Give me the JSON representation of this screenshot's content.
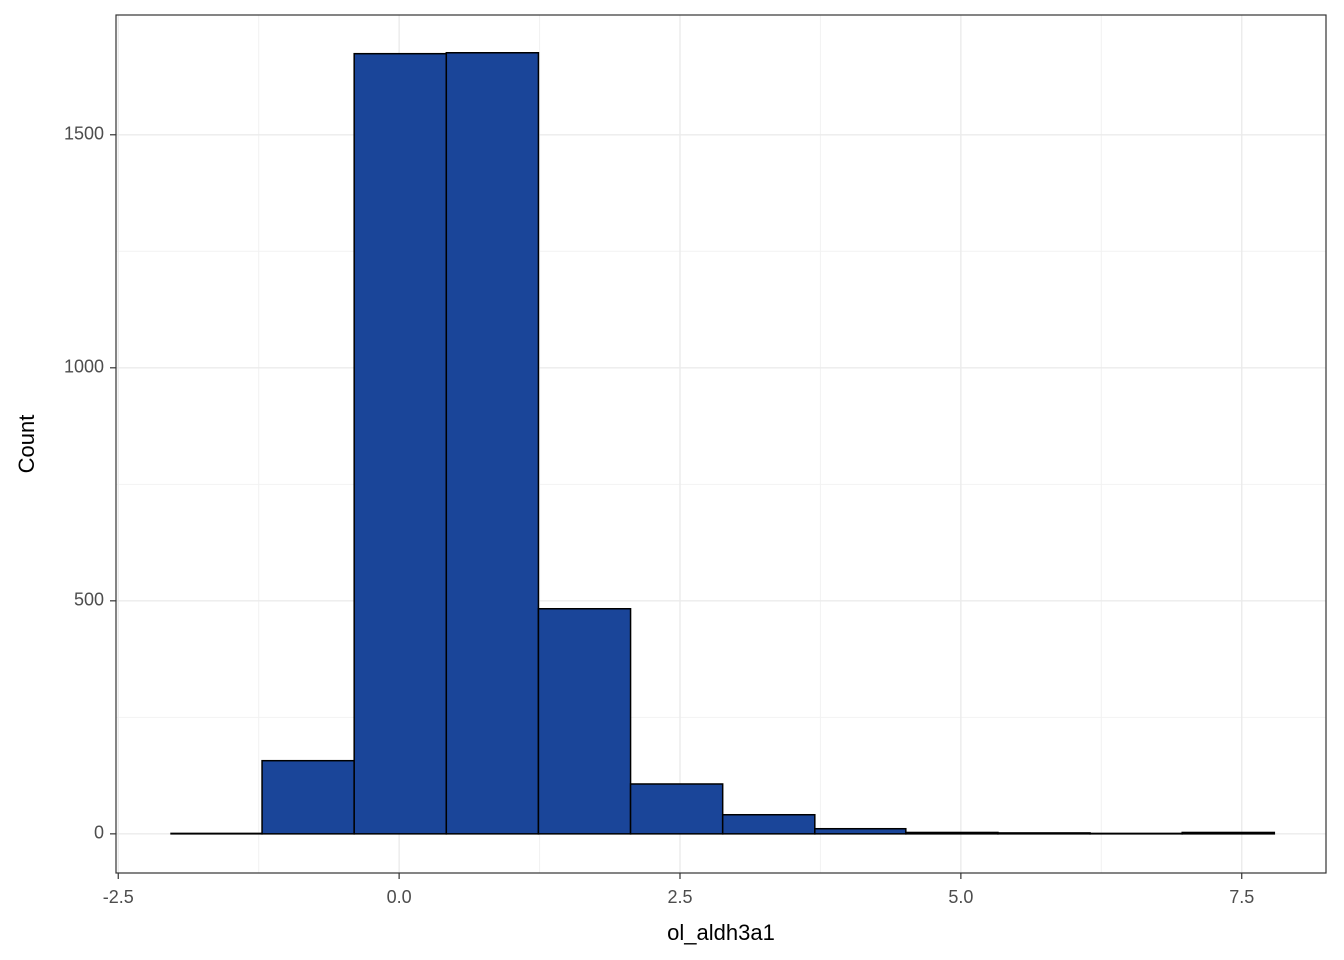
{
  "chart_data": {
    "type": "histogram",
    "x_label": "ol_aldh3a1",
    "y_label": "Count",
    "bins": [
      -2.03,
      -1.22,
      -0.4,
      0.42,
      1.24,
      2.06,
      2.88,
      3.7,
      4.51,
      5.33,
      6.15,
      6.97,
      7.79
    ],
    "values": [
      1,
      157,
      1674,
      1676,
      483,
      107,
      41,
      11,
      3,
      2,
      1,
      3
    ],
    "color": "#1a4599",
    "xlim": [
      -2.52,
      8.25
    ],
    "ylim": [
      -84,
      1757
    ],
    "xticks": [
      -2.5,
      {
        "value": 0,
        "label": "0.0"
      },
      2.5,
      {
        "value": 5,
        "label": "5.0"
      },
      7.5
    ],
    "yticks": [
      0,
      500,
      1000,
      1500
    ],
    "grid": true
  }
}
